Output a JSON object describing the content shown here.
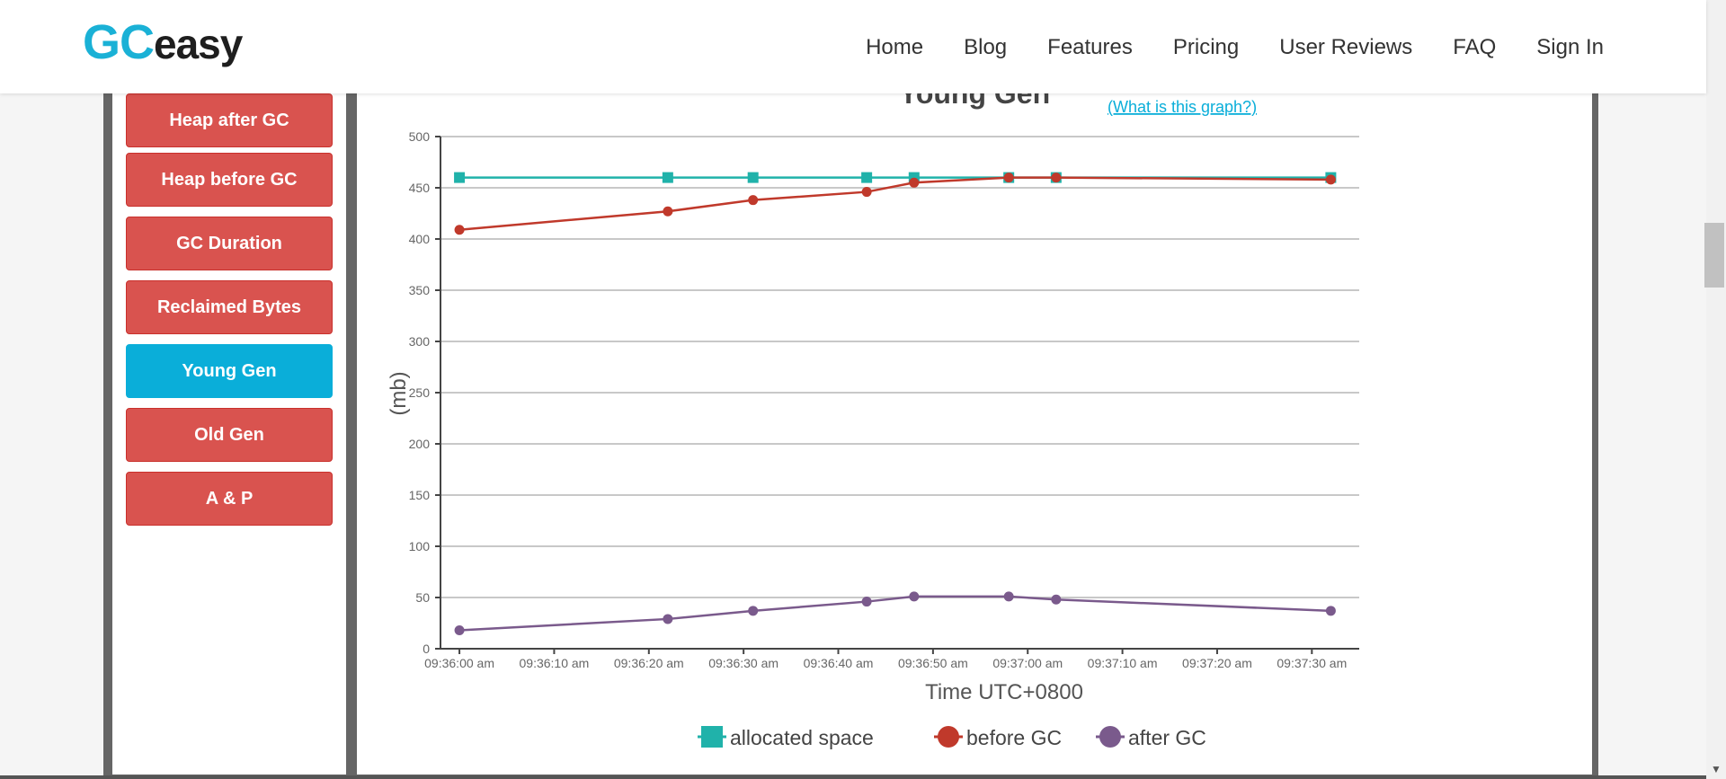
{
  "brand": {
    "gc": "GC",
    "easy": "easy"
  },
  "nav": [
    "Home",
    "Blog",
    "Features",
    "Pricing",
    "User Reviews",
    "FAQ",
    "Sign In"
  ],
  "sidebar": {
    "buttons": [
      "Heap after GC",
      "Heap before GC",
      "GC Duration",
      "Reclaimed Bytes",
      "Young Gen",
      "Old Gen",
      "A & P"
    ],
    "active": "Young Gen"
  },
  "help_link": "(What is this graph?)",
  "colors": {
    "allocated": "#20b2aa",
    "before": "#c0392b",
    "after": "#7a5a8c",
    "active_button": "#0aaed9",
    "button": "#d9534f"
  },
  "chart_data": {
    "type": "line",
    "title": "Young Gen",
    "xlabel": "Time UTC+0800",
    "ylabel": "(mb)",
    "ylim": [
      0,
      500
    ],
    "yticks": [
      0,
      50,
      100,
      150,
      200,
      250,
      300,
      350,
      400,
      450,
      500
    ],
    "xlim": [
      -2,
      95
    ],
    "xticks": [
      0,
      10,
      20,
      30,
      40,
      50,
      60,
      70,
      80,
      90
    ],
    "xtick_labels": [
      "09:36:00 am",
      "09:36:10 am",
      "09:36:20 am",
      "09:36:30 am",
      "09:36:40 am",
      "09:36:50 am",
      "09:37:00 am",
      "09:37:10 am",
      "09:37:20 am",
      "09:37:30 am"
    ],
    "x": [
      0,
      22,
      31,
      43,
      48,
      58,
      63,
      92
    ],
    "series": [
      {
        "name": "allocated space",
        "marker": "square",
        "values": [
          460,
          460,
          460,
          460,
          460,
          460,
          460,
          460
        ]
      },
      {
        "name": "before GC",
        "marker": "circle",
        "values": [
          409,
          427,
          438,
          446,
          455,
          460,
          460,
          458
        ]
      },
      {
        "name": "after GC",
        "marker": "circle",
        "values": [
          18,
          29,
          37,
          46,
          51,
          51,
          48,
          37
        ]
      }
    ],
    "legend_position": "bottom-center",
    "grid": true
  }
}
